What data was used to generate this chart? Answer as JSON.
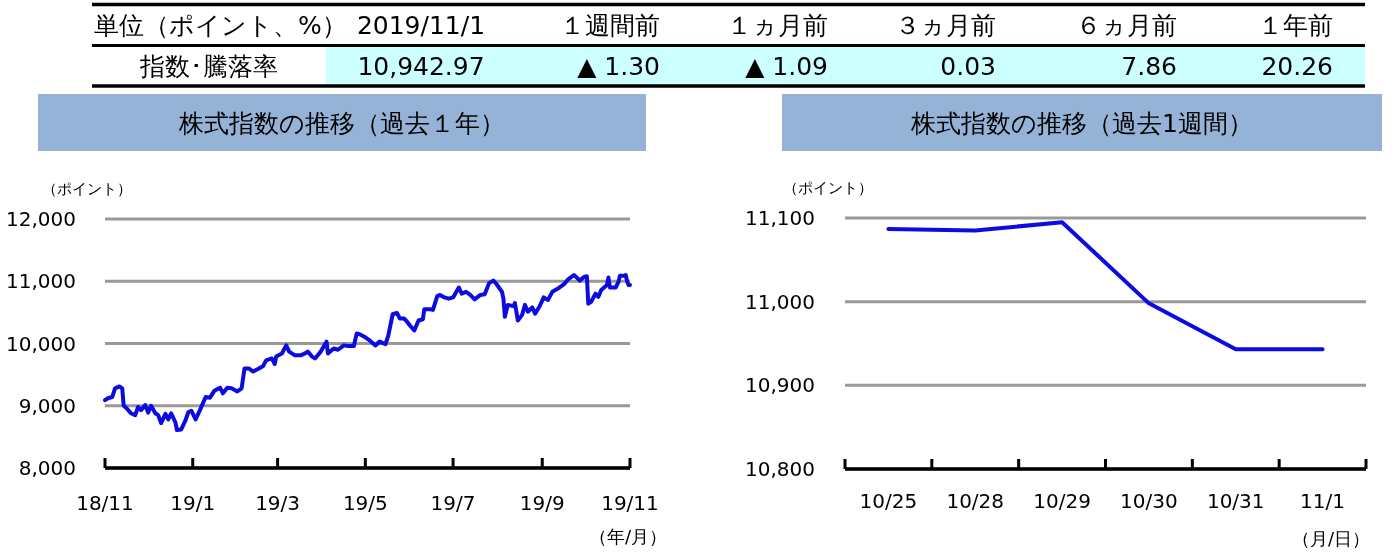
{
  "chart_data": [
    {
      "type": "other",
      "categories": [
        "2019/11/1",
        "１週間前",
        "１ヵ月前",
        "３ヵ月前",
        "６ヵ月前",
        "１年前"
      ],
      "value_labels": [
        "10,942.97",
        "▲ 1.30",
        "▲ 1.09",
        "0.03",
        "7.86",
        "20.26"
      ],
      "annotations": [
        "単位（ポイント、%）",
        "指数･騰落率"
      ]
    },
    {
      "type": "line",
      "title": "株式指数の推移（過去１年）",
      "ylabel": "（ポイント）",
      "xlabel": "（年/月）",
      "x": [
        "2018-11-01",
        "2018-11-03",
        "2018-11-06",
        "2018-11-08",
        "2018-11-11",
        "2018-11-13",
        "2018-11-14",
        "2018-11-16",
        "2018-11-19",
        "2018-11-22",
        "2018-11-24",
        "2018-11-26",
        "2018-11-29",
        "2018-12-01",
        "2018-12-03",
        "2018-12-06",
        "2018-12-08",
        "2018-12-10",
        "2018-12-13",
        "2018-12-15",
        "2018-12-17",
        "2018-12-20",
        "2018-12-21",
        "2018-12-24",
        "2018-12-27",
        "2018-12-29",
        "2018-12-31",
        "2019-01-03",
        "2019-01-06",
        "2019-01-10",
        "2019-01-13",
        "2019-01-16",
        "2019-01-20",
        "2019-01-22",
        "2019-01-25",
        "2019-01-28",
        "2019-02-01",
        "2019-02-04",
        "2019-02-06",
        "2019-02-09",
        "2019-02-12",
        "2019-02-16",
        "2019-02-19",
        "2019-02-21",
        "2019-02-25",
        "2019-02-27",
        "2019-02-28",
        "2019-03-04",
        "2019-03-07",
        "2019-03-09",
        "2019-03-13",
        "2019-03-17",
        "2019-03-20",
        "2019-03-22",
        "2019-03-25",
        "2019-03-27",
        "2019-03-31",
        "2019-04-04",
        "2019-04-05",
        "2019-04-09",
        "2019-04-12",
        "2019-04-16",
        "2019-04-19",
        "2019-04-23",
        "2019-04-25",
        "2019-04-27",
        "2019-05-01",
        "2019-05-04",
        "2019-05-08",
        "2019-05-11",
        "2019-05-15",
        "2019-05-17",
        "2019-05-20",
        "2019-05-23",
        "2019-05-25",
        "2019-05-28",
        "2019-05-30",
        "2019-06-01",
        "2019-06-04",
        "2019-06-07",
        "2019-06-10",
        "2019-06-11",
        "2019-06-15",
        "2019-06-17",
        "2019-06-20",
        "2019-06-22",
        "2019-06-25",
        "2019-06-28",
        "2019-07-01",
        "2019-07-05",
        "2019-07-07",
        "2019-07-10",
        "2019-07-13",
        "2019-07-16",
        "2019-07-20",
        "2019-07-23",
        "2019-07-26",
        "2019-07-29",
        "2019-07-31",
        "2019-08-04",
        "2019-08-05",
        "2019-08-06",
        "2019-08-08",
        "2019-08-12",
        "2019-08-13",
        "2019-08-15",
        "2019-08-18",
        "2019-08-20",
        "2019-08-22",
        "2019-08-25",
        "2019-08-27",
        "2019-08-30",
        "2019-09-02",
        "2019-09-05",
        "2019-09-08",
        "2019-09-11",
        "2019-09-13",
        "2019-09-16",
        "2019-09-19",
        "2019-09-23",
        "2019-09-25",
        "2019-09-27",
        "2019-09-30",
        "2019-10-02",
        "2019-10-03",
        "2019-10-05",
        "2019-10-08",
        "2019-10-10",
        "2019-10-12",
        "2019-10-16",
        "2019-10-17",
        "2019-10-18",
        "2019-10-22",
        "2019-10-24",
        "2019-10-25",
        "2019-10-28",
        "2019-10-29",
        "2019-10-30",
        "2019-10-31",
        "2019-11-01"
      ],
      "series": [
        {
          "color": "#0c0ce0",
          "values": [
            9090,
            9120,
            9140,
            9280,
            9310,
            9280,
            9000,
            8960,
            8880,
            8850,
            8980,
            8930,
            9010,
            8890,
            9000,
            8880,
            8850,
            8720,
            8870,
            8780,
            8880,
            8730,
            8610,
            8620,
            8770,
            8900,
            8920,
            8780,
            8930,
            9140,
            9130,
            9240,
            9290,
            9200,
            9290,
            9280,
            9230,
            9280,
            9600,
            9600,
            9550,
            9600,
            9640,
            9730,
            9760,
            9670,
            9790,
            9840,
            9970,
            9870,
            9810,
            9810,
            9840,
            9870,
            9790,
            9760,
            9870,
            10030,
            9840,
            9920,
            9900,
            9970,
            9960,
            9960,
            10160,
            10150,
            10100,
            10050,
            9970,
            10030,
            9990,
            10130,
            10470,
            10490,
            10400,
            10400,
            10350,
            10290,
            10210,
            10370,
            10390,
            10550,
            10550,
            10540,
            10760,
            10780,
            10740,
            10720,
            10740,
            10900,
            10800,
            10830,
            10780,
            10710,
            10780,
            10790,
            10970,
            11010,
            10960,
            10830,
            10720,
            10430,
            10620,
            10600,
            10650,
            10370,
            10460,
            10620,
            10510,
            10580,
            10480,
            10590,
            10740,
            10700,
            10830,
            10870,
            10900,
            10950,
            11030,
            11100,
            11060,
            11010,
            11070,
            11080,
            10640,
            10670,
            10800,
            10750,
            10860,
            10940,
            11060,
            10900,
            10900,
            10990,
            11090,
            11090,
            11100,
            11000,
            10940,
            10940
          ]
        }
      ],
      "xlim": [
        "2018-11-01",
        "2019-11-01"
      ],
      "xticks": [
        {
          "value": "2018-11-01",
          "label": "18/11"
        },
        {
          "value": "2019-01-01",
          "label": "19/1"
        },
        {
          "value": "2019-03-01",
          "label": "19/3"
        },
        {
          "value": "2019-05-01",
          "label": "19/5"
        },
        {
          "value": "2019-07-01",
          "label": "19/7"
        },
        {
          "value": "2019-09-01",
          "label": "19/9"
        },
        {
          "value": "2019-11-01",
          "label": "19/11"
        }
      ],
      "ylim": [
        8000,
        12000
      ],
      "yticks": [
        {
          "value": 8000,
          "label": "8,000"
        },
        {
          "value": 9000,
          "label": "9,000"
        },
        {
          "value": 10000,
          "label": "10,000"
        },
        {
          "value": 11000,
          "label": "11,000"
        },
        {
          "value": 12000,
          "label": "12,000"
        }
      ],
      "grid": "y"
    },
    {
      "type": "line",
      "title": "株式指数の推移（過去1週間）",
      "ylabel": "（ポイント）",
      "xlabel": "（月/日）",
      "categories": [
        "10/25",
        "10/28",
        "10/29",
        "10/30",
        "10/31",
        "11/1"
      ],
      "series": [
        {
          "color": "#0c0ce0",
          "values": [
            11087,
            11085,
            11095,
            10998,
            10943,
            10943
          ]
        }
      ],
      "ylim": [
        10800,
        11100
      ],
      "yticks": [
        {
          "value": 10800,
          "label": "10,800"
        },
        {
          "value": 10900,
          "label": "10,900"
        },
        {
          "value": 11000,
          "label": "11,000"
        },
        {
          "value": 11100,
          "label": "11,100"
        }
      ],
      "grid": "y"
    }
  ]
}
